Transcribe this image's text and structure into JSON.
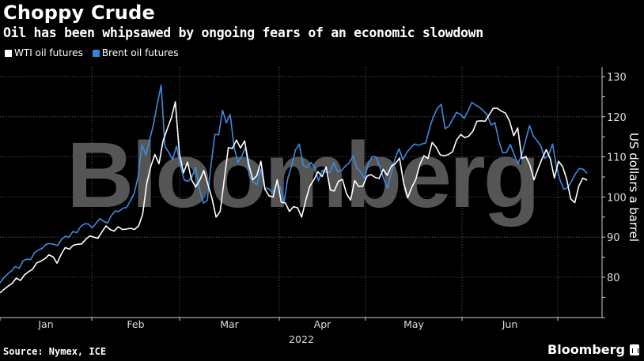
{
  "header": {
    "title": "Choppy Crude",
    "subtitle": "Oil has been whipsawed by ongoing fears of an economic slowdown"
  },
  "legend": {
    "items": [
      {
        "label": "WTI oil futures",
        "color": "#ffffff"
      },
      {
        "label": "Brent oil futures",
        "color": "#2e86de"
      }
    ]
  },
  "footer": {
    "source": "Source: Nymex, ICE",
    "brand": "Bloomberg"
  },
  "watermark": "Bloomberg",
  "colors": {
    "background": "#000000",
    "wti": "#ffffff",
    "brent": "#3d8be0",
    "grid": "#5a5a5a",
    "watermark": "#555555",
    "axis": "#cccccc"
  },
  "chart_data": {
    "type": "line",
    "title": "Choppy Crude",
    "subtitle": "Oil has been whipsawed by ongoing fears of an economic slowdown",
    "xlabel": "2022",
    "ylabel": "US dollars a barrel",
    "ylim": [
      75,
      131
    ],
    "yticks": [
      80,
      90,
      100,
      110,
      120,
      130
    ],
    "xticks": [
      "Jan",
      "Feb",
      "Mar",
      "Apr",
      "May",
      "Jun"
    ],
    "grid": true,
    "legend_position": "top-left",
    "y_axis_position": "right",
    "x_fraction_note": "points evenly spaced across Jan 3 – early Jul 2022 trading days",
    "series": [
      {
        "name": "WTI oil futures",
        "color": "#ffffff",
        "values": [
          76.1,
          77.0,
          77.8,
          78.5,
          79.8,
          79.2,
          80.6,
          81.4,
          82.0,
          83.6,
          84.0,
          84.6,
          85.6,
          85.1,
          83.5,
          85.7,
          87.4,
          87.0,
          88.0,
          88.2,
          88.3,
          89.4,
          90.3,
          90.0,
          89.7,
          91.3,
          92.8,
          91.9,
          91.5,
          92.6,
          91.9,
          92.0,
          92.2,
          91.9,
          92.8,
          95.7,
          103.4,
          107.7,
          110.6,
          108.3,
          114.0,
          116.9,
          119.6,
          123.7,
          111.0,
          106.0,
          108.7,
          104.3,
          102.5,
          104.2,
          106.6,
          103.1,
          99.7,
          95.0,
          96.4,
          104.3,
          112.3,
          112.1,
          114.2,
          112.2,
          114.0,
          108.2,
          104.3,
          105.3,
          108.9,
          101.9,
          100.3,
          100.0,
          104.3,
          98.7,
          98.5,
          96.4,
          97.6,
          97.3,
          95.0,
          99.2,
          102.7,
          104.3,
          106.3,
          105.1,
          107.5,
          101.8,
          101.5,
          103.9,
          104.4,
          100.8,
          99.2,
          104.1,
          102.6,
          102.7,
          105.2,
          105.6,
          104.9,
          104.6,
          106.9,
          105.4,
          107.7,
          108.3,
          109.7,
          103.6,
          99.8,
          102.4,
          104.4,
          108.1,
          110.3,
          109.6,
          113.6,
          112.4,
          110.5,
          110.3,
          110.6,
          111.3,
          114.2,
          115.6,
          114.8,
          115.2,
          116.4,
          118.9,
          119.0,
          118.9,
          120.5,
          122.1,
          122.1,
          121.4,
          120.9,
          118.9,
          115.3,
          117.2,
          109.6,
          110.1,
          107.9,
          104.3,
          107.1,
          109.6,
          111.8,
          109.5,
          104.7,
          108.9,
          107.6,
          104.5,
          99.5,
          98.6,
          102.8,
          104.7,
          104.2
        ]
      },
      {
        "name": "Brent oil futures",
        "color": "#3d8be0",
        "values": [
          78.6,
          79.9,
          80.8,
          81.6,
          82.7,
          82.2,
          84.1,
          84.5,
          84.4,
          86.1,
          86.8,
          87.2,
          88.2,
          88.4,
          88.2,
          87.9,
          89.4,
          90.2,
          90.0,
          91.4,
          91.1,
          92.6,
          93.3,
          93.3,
          92.3,
          93.4,
          94.6,
          94.0,
          93.5,
          95.3,
          96.5,
          96.4,
          97.2,
          97.4,
          99.1,
          100.9,
          105.2,
          113.0,
          110.5,
          114.2,
          118.1,
          123.2,
          127.9,
          112.6,
          111.1,
          109.3,
          112.7,
          108.0,
          104.3,
          103.9,
          105.0,
          107.4,
          101.8,
          98.5,
          99.1,
          107.9,
          115.6,
          115.5,
          121.6,
          118.5,
          120.6,
          112.5,
          108.6,
          110.1,
          112.5,
          105.3,
          103.7,
          103.1,
          106.9,
          102.2,
          102.1,
          101.1,
          103.0,
          102.6,
          98.5,
          104.6,
          107.7,
          111.7,
          113.2,
          108.0,
          107.3,
          108.6,
          107.5,
          104.0,
          106.7,
          106.2,
          106.1,
          108.6,
          106.3,
          106.6,
          107.7,
          108.5,
          110.3,
          107.2,
          106.3,
          104.6,
          108.2,
          110.1,
          110.0,
          107.5,
          104.5,
          102.2,
          106.0,
          109.7,
          112.0,
          109.3,
          111.1,
          112.2,
          113.2,
          112.9,
          113.2,
          113.5,
          117.3,
          120.1,
          122.1,
          123.1,
          117.0,
          117.7,
          119.4,
          121.1,
          120.6,
          119.6,
          121.5,
          123.6,
          122.9,
          122.3,
          121.5,
          120.4,
          118.0,
          118.5,
          114.1,
          111.0,
          111.1,
          113.1,
          110.6,
          108.3,
          110.6,
          114.1,
          117.8,
          115.2,
          114.0,
          112.6,
          109.6,
          110.5,
          113.2,
          107.7,
          104.1,
          101.9,
          102.4,
          104.0,
          105.8,
          107.1,
          106.9,
          105.9
        ]
      }
    ]
  }
}
